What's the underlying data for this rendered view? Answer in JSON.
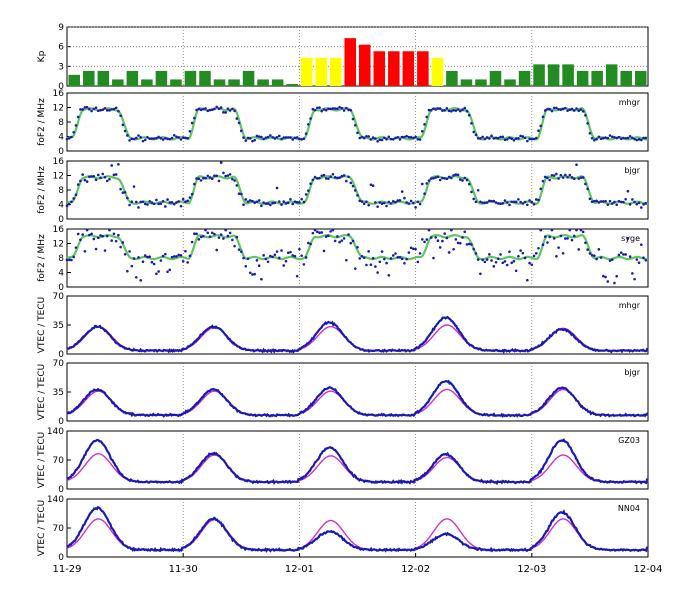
{
  "chart_data": {
    "type": "line",
    "x_ticks": [
      "11-29",
      "11-30",
      "12-01",
      "12-02",
      "12-03",
      "12-04"
    ],
    "x_range_days": [
      0,
      5
    ],
    "colors": {
      "kp_green": "#228B22",
      "kp_yellow": "#FFFF00",
      "kp_red": "#FF0000",
      "observed": "#1A1AB0",
      "fof2_model": "#5DC65D",
      "vtec_model": "#CC33CC"
    },
    "panels": [
      {
        "id": "kp",
        "ylabel": "Kp",
        "ylim": [
          0,
          9
        ],
        "yticks": [
          0,
          3,
          6,
          9
        ],
        "grid": "dotted at 3,6,9",
        "kp_values": [
          1.7,
          2.3,
          2.3,
          1.0,
          2.3,
          1.0,
          2.3,
          1.0,
          2.3,
          2.3,
          1.0,
          1.0,
          2.3,
          1.0,
          1.0,
          0.3,
          4.3,
          4.3,
          4.3,
          7.3,
          6.3,
          5.3,
          5.3,
          5.3,
          5.3,
          4.3,
          2.3,
          1.0,
          1.0,
          2.3,
          1.0,
          2.3,
          3.3,
          3.3,
          3.3,
          2.3,
          2.3,
          3.3,
          2.3,
          2.3
        ]
      },
      {
        "id": "fof2-mhgr",
        "station": "mhgr",
        "ylabel": "foF2 / MHz",
        "ylim": [
          0,
          16
        ],
        "yticks": [
          0,
          4,
          8,
          12,
          16
        ],
        "day_max": 11.5,
        "night_min": 3.5,
        "scatter": 0.5
      },
      {
        "id": "fof2-bjgr",
        "station": "bjgr",
        "ylabel": "foF2 / MHz",
        "ylim": [
          0,
          16
        ],
        "yticks": [
          0,
          4,
          8,
          12,
          16
        ],
        "day_max": 11.5,
        "night_min": 4.5,
        "scatter": 0.8
      },
      {
        "id": "fof2-syge",
        "station": "syge",
        "ylabel": "foF2 / MHz",
        "ylim": [
          0,
          16
        ],
        "yticks": [
          0,
          4,
          8,
          12,
          16
        ],
        "day_max": 14.0,
        "night_min": 8.0,
        "scatter": 1.8
      },
      {
        "id": "vtec-mhgr",
        "station": "mhgr",
        "ylabel": "VTEC / TECU",
        "ylim": [
          0,
          70
        ],
        "yticks": [
          0,
          35,
          70
        ],
        "day_max_obs": [
          33,
          33,
          38,
          44,
          30
        ],
        "day_max_model": [
          33,
          32,
          33,
          35,
          31
        ],
        "night_min": 4
      },
      {
        "id": "vtec-bjgr",
        "station": "bjgr",
        "ylabel": "VTEC / TECU",
        "ylim": [
          0,
          70
        ],
        "yticks": [
          0,
          35,
          70
        ],
        "day_max_obs": [
          38,
          38,
          40,
          48,
          40
        ],
        "day_max_model": [
          36,
          36,
          36,
          38,
          38
        ],
        "night_min": 7
      },
      {
        "id": "vtec-gz03",
        "station": "GZ03",
        "ylabel": "VTEC / TECU",
        "ylim": [
          0,
          140
        ],
        "yticks": [
          0,
          70,
          140
        ],
        "day_max_obs": [
          118,
          86,
          100,
          84,
          118
        ],
        "day_max_model": [
          85,
          82,
          80,
          76,
          82
        ],
        "night_min": 17
      },
      {
        "id": "vtec-nn04",
        "station": "NN04",
        "ylabel": "VTEC / TECU",
        "ylim": [
          0,
          140
        ],
        "yticks": [
          0,
          70,
          140
        ],
        "day_max_obs": [
          118,
          92,
          62,
          55,
          108
        ],
        "day_max_model": [
          92,
          90,
          88,
          92,
          92
        ],
        "night_min": 17
      }
    ]
  }
}
